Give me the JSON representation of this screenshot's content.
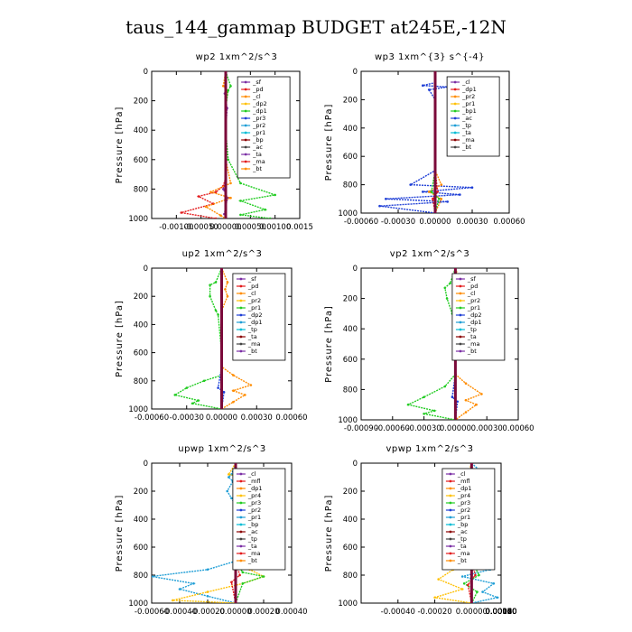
{
  "title": "taus_144_gammap  BUDGET at245E,-12N",
  "chart_data": [
    {
      "type": "line",
      "title": "wp2  1xm^2/s^3",
      "ylabel": "Pressure [hPa]",
      "xlim": [
        -0.0015,
        0.0015
      ],
      "ylim": [
        1000,
        0
      ],
      "xticks": [
        -0.001,
        -0.0005,
        0,
        0.0005,
        0.001,
        0.0015
      ],
      "xtick_labels": [
        "-0.00100",
        "-0.00050",
        "0.00000",
        "0.00050",
        "0.00100",
        "0.0015"
      ],
      "yticks": [
        0,
        200,
        400,
        600,
        800,
        1000
      ],
      "legend": [
        "_sf",
        "_pd",
        "_cl",
        "_dp2",
        "_dp1",
        "_pr3",
        "_pr2",
        "_pr1",
        "_bp",
        "_ac",
        "_ta",
        "_ma",
        "_bt"
      ],
      "series": [
        {
          "name": "_pd",
          "color": "#7b2fa5",
          "x": [
            0,
            0,
            -2e-05,
            3e-05,
            0,
            0,
            0,
            -5e-05,
            4e-05,
            0,
            -3e-05,
            0
          ],
          "y": [
            0,
            100,
            150,
            250,
            400,
            600,
            720,
            800,
            860,
            920,
            970,
            1000
          ]
        },
        {
          "name": "_cl",
          "color": "#e31a1c",
          "x": [
            0,
            0,
            0,
            0,
            0,
            0,
            -5e-05,
            -0.0002,
            -0.00055,
            -0.00025,
            -0.0009,
            -0.0002
          ],
          "y": [
            0,
            100,
            200,
            400,
            600,
            720,
            780,
            820,
            850,
            900,
            960,
            1000
          ]
        },
        {
          "name": "_pr2",
          "color": "#ff8c00",
          "x": [
            0,
            -5e-05,
            4e-05,
            0,
            0,
            0,
            0.0001,
            -0.0003,
            0.0001,
            -0.0004,
            -0.0001,
            0
          ],
          "y": [
            0,
            100,
            130,
            250,
            400,
            600,
            760,
            820,
            860,
            920,
            980,
            1000
          ]
        },
        {
          "name": "_pr1",
          "color": "#22cc22",
          "x": [
            0,
            0.0001,
            5e-05,
            0,
            0,
            5e-05,
            0.0003,
            0.001,
            0.0003,
            0.0008,
            0.0003,
            0.0009
          ],
          "y": [
            0,
            100,
            130,
            250,
            400,
            600,
            760,
            840,
            880,
            940,
            975,
            1000
          ]
        },
        {
          "name": "_bt",
          "color": "#00bcd4",
          "x": [
            0,
            0,
            0,
            0,
            0,
            0,
            0,
            0
          ],
          "y": [
            0,
            200,
            400,
            600,
            800,
            900,
            950,
            1000
          ]
        }
      ]
    },
    {
      "type": "line",
      "title": "wp3  1xm^{3} s^{-4}",
      "ylabel": "Pressure [hPa]",
      "xlim": [
        -0.0006,
        0.0006
      ],
      "ylim": [
        1000,
        0
      ],
      "xticks": [
        -0.0006,
        -0.0003,
        0,
        0.0003,
        0.0006
      ],
      "xtick_labels": [
        "-0.00060",
        "-0.00030",
        "0.00000",
        "0.00030",
        "0.00060"
      ],
      "yticks": [
        0,
        200,
        400,
        600,
        800,
        1000
      ],
      "legend": [
        "_cl",
        "_dp1",
        "_pr2",
        "_pr1",
        "_bp1",
        "_ac",
        "_tp",
        "_ta",
        "_ma",
        "_bt"
      ],
      "series": [
        {
          "name": "_dp1",
          "color": "#1f3fd6",
          "x": [
            0,
            0,
            -0.0001,
            0.0001,
            -5e-05,
            0,
            0,
            -0.0002,
            0.0003,
            -0.0001,
            0.0002,
            -0.0004,
            0.0001,
            -0.00045,
            0
          ],
          "y": [
            0,
            80,
            100,
            110,
            130,
            200,
            700,
            800,
            820,
            850,
            870,
            900,
            920,
            950,
            1000
          ]
        },
        {
          "name": "_pr2",
          "color": "#ff8c00",
          "x": [
            0,
            0,
            0,
            5e-05,
            -5e-05,
            5e-05,
            0
          ],
          "y": [
            0,
            100,
            700,
            800,
            850,
            900,
            1000
          ]
        },
        {
          "name": "_pr1",
          "color": "#22cc22",
          "x": [
            0,
            0,
            0,
            -3e-05,
            3e-05,
            0
          ],
          "y": [
            0,
            100,
            700,
            850,
            900,
            1000
          ]
        },
        {
          "name": "_cl",
          "color": "#e31a1c",
          "x": [
            0,
            0,
            0,
            2e-05,
            -2e-05,
            0
          ],
          "y": [
            0,
            200,
            700,
            850,
            900,
            1000
          ]
        },
        {
          "name": "_bt",
          "color": "#00bcd4",
          "x": [
            0,
            0,
            0
          ],
          "y": [
            0,
            500,
            1000
          ]
        }
      ]
    },
    {
      "type": "line",
      "title": "up2  1xm^2/s^3",
      "ylabel": "Pressure [hPa]",
      "xlim": [
        -0.0006,
        0.0006
      ],
      "ylim": [
        1000,
        0
      ],
      "xticks": [
        -0.0006,
        -0.0003,
        0,
        0.0003,
        0.0006
      ],
      "xtick_labels": [
        "-0.00060",
        "-0.00030",
        "0.00000",
        "0.00030",
        "0.00060"
      ],
      "yticks": [
        0,
        200,
        400,
        600,
        800,
        1000
      ],
      "legend": [
        "_sf",
        "_pd",
        "_cl",
        "_pr2",
        "_pr1",
        "_dp2",
        "_dp1",
        "_tp",
        "_ta",
        "_ma",
        "_bt"
      ],
      "series": [
        {
          "name": "_pr1",
          "color": "#22cc22",
          "x": [
            0,
            -5e-05,
            -0.0001,
            -0.0001,
            -5e-05,
            -3e-05,
            0,
            0,
            -0.00015,
            -0.0003,
            -0.0004,
            -0.0002,
            -0.00025,
            0
          ],
          "y": [
            0,
            100,
            120,
            200,
            300,
            330,
            600,
            760,
            800,
            850,
            900,
            940,
            960,
            1000
          ]
        },
        {
          "name": "_pr2",
          "color": "#ff8c00",
          "x": [
            0,
            5e-05,
            3e-05,
            5e-05,
            0,
            0,
            0.0001,
            0.00025,
            0.0001,
            0.0002,
            0.0001,
            0
          ],
          "y": [
            0,
            100,
            150,
            200,
            300,
            700,
            760,
            830,
            870,
            900,
            950,
            1000
          ]
        },
        {
          "name": "_dp1",
          "color": "#1f3fd6",
          "x": [
            0,
            0,
            0,
            -3e-05,
            2e-05,
            0
          ],
          "y": [
            0,
            500,
            700,
            850,
            880,
            1000
          ]
        },
        {
          "name": "_cl",
          "color": "#e31a1c",
          "x": [
            0,
            0,
            0,
            0
          ],
          "y": [
            0,
            300,
            700,
            1000
          ]
        },
        {
          "name": "_pd",
          "color": "#7b2fa5",
          "x": [
            0,
            0,
            0
          ],
          "y": [
            0,
            500,
            1000
          ]
        }
      ]
    },
    {
      "type": "line",
      "title": "vp2  1xm^2/s^3",
      "ylabel": "Pressure [hPa]",
      "xlim": [
        -0.0009,
        0.0006
      ],
      "ylim": [
        1000,
        0
      ],
      "xticks": [
        -0.0009,
        -0.0006,
        -0.0003,
        0,
        0.0003,
        0.0006
      ],
      "xtick_labels": [
        "-0.00090",
        "-0.00060",
        "-0.00030",
        "0.00000",
        "0.00030",
        "0.00060"
      ],
      "yticks": [
        0,
        200,
        400,
        600,
        800,
        1000
      ],
      "legend": [
        "_sf",
        "_pd",
        "_cl",
        "_pr2",
        "_pr1",
        "_dp2",
        "_dp1",
        "_tp",
        "_ta",
        "_ma",
        "_bt"
      ],
      "series": [
        {
          "name": "_pr1",
          "color": "#22cc22",
          "x": [
            0,
            -5e-05,
            -0.0001,
            -8e-05,
            -3e-05,
            0,
            0,
            -0.0001,
            -0.0003,
            -0.00045,
            -0.0002,
            -0.0003,
            0
          ],
          "y": [
            0,
            100,
            130,
            200,
            300,
            330,
            700,
            780,
            850,
            900,
            940,
            960,
            1000
          ]
        },
        {
          "name": "_pr2",
          "color": "#ff8c00",
          "x": [
            0,
            5e-05,
            0.0001,
            5e-05,
            0,
            0,
            0.0001,
            0.00025,
            0.0001,
            0.0002,
            0.0001,
            0
          ],
          "y": [
            0,
            100,
            150,
            200,
            300,
            700,
            760,
            830,
            870,
            900,
            950,
            1000
          ]
        },
        {
          "name": "_dp1",
          "color": "#1f3fd6",
          "x": [
            0,
            0,
            0,
            -3e-05,
            2e-05,
            0
          ],
          "y": [
            0,
            500,
            700,
            850,
            880,
            1000
          ]
        },
        {
          "name": "_cl",
          "color": "#e31a1c",
          "x": [
            0,
            0,
            0,
            0
          ],
          "y": [
            0,
            300,
            700,
            1000
          ]
        },
        {
          "name": "_pd",
          "color": "#7b2fa5",
          "x": [
            0,
            0,
            0
          ],
          "y": [
            0,
            500,
            1000
          ]
        }
      ]
    },
    {
      "type": "line",
      "title": "upwp  1xm^2/s^3",
      "ylabel": "Pressure [hPa]",
      "xlim": [
        -0.0006,
        0.0004
      ],
      "ylim": [
        1000,
        0
      ],
      "xticks": [
        -0.0006,
        -0.0004,
        -0.0002,
        0,
        0.0002,
        0.0004
      ],
      "xtick_labels": [
        "-0.00060",
        "-0.00040",
        "-0.00020",
        "0.00000",
        "0.00020",
        "0.00040"
      ],
      "yticks": [
        0,
        200,
        400,
        600,
        800,
        1000
      ],
      "legend": [
        "_cl",
        "_mfl",
        "_dp1",
        "_pr4",
        "_pr3",
        "_pr2",
        "_pr1",
        "_bp",
        "_ac",
        "_tp",
        "_ta",
        "_ma",
        "_bt"
      ],
      "series": [
        {
          "name": "_cl",
          "color": "#1f9ed6",
          "x": [
            0,
            -3e-05,
            -5e-05,
            -2e-05,
            -6e-05,
            -3e-05,
            0,
            0,
            -0.0002,
            -0.0006,
            -0.0003,
            -0.0004,
            -0.0002,
            0
          ],
          "y": [
            0,
            80,
            100,
            130,
            200,
            250,
            300,
            700,
            760,
            810,
            860,
            900,
            950,
            1000
          ]
        },
        {
          "name": "_pr2",
          "color": "#ffc107",
          "x": [
            0,
            -5e-05,
            3e-05,
            0,
            0,
            0.0001,
            0.0002,
            5e-05,
            -0.0002,
            -0.00045,
            0
          ],
          "y": [
            0,
            80,
            100,
            200,
            700,
            760,
            810,
            860,
            920,
            980,
            1000
          ]
        },
        {
          "name": "_pr1",
          "color": "#22cc22",
          "x": [
            0,
            0,
            0,
            5e-05,
            0.0002,
            5e-05,
            0
          ],
          "y": [
            0,
            200,
            700,
            780,
            810,
            860,
            1000
          ]
        },
        {
          "name": "_mfl",
          "color": "#e31a1c",
          "x": [
            0,
            0,
            0,
            3e-05,
            -3e-05,
            0
          ],
          "y": [
            0,
            200,
            700,
            800,
            850,
            1000
          ]
        },
        {
          "name": "_bt",
          "color": "#7b2fa5",
          "x": [
            0,
            0,
            0
          ],
          "y": [
            0,
            500,
            1000
          ]
        }
      ]
    },
    {
      "type": "line",
      "title": "vpwp  1xm^2/s^3",
      "ylabel": "Pressure [hPa]",
      "xlim": [
        -0.0006,
        0.00016
      ],
      "ylim": [
        1000,
        0
      ],
      "xticks": [
        -0.0004,
        -0.0002,
        0,
        0.0002,
        0.0004,
        0.0006,
        0.0008,
        0.001,
        0.0012,
        0.0014,
        0.0016
      ],
      "xtick_labels": [
        "-0.00040",
        "-0.00020",
        "0.00000",
        "0.00020",
        "0.00040",
        "0.00060",
        "0.00080",
        "0.00100",
        "0.00120",
        "0.00140",
        "0.00160"
      ],
      "yticks": [
        0,
        200,
        400,
        600,
        800,
        1000
      ],
      "legend": [
        "_cl",
        "_mfl",
        "_dp1",
        "_pr4",
        "_pr3",
        "_pr2",
        "_pr1",
        "_bp",
        "_ac",
        "_tp",
        "_ta",
        "_ma",
        "_bt"
      ],
      "series": [
        {
          "name": "_cl",
          "color": "#1f9ed6",
          "x": [
            0,
            5e-05,
            -8e-05,
            6e-05,
            -5e-05,
            4e-05,
            0,
            0,
            0.0001,
            -5e-05,
            0.00012,
            6e-05,
            0.00014,
            0
          ],
          "y": [
            0,
            60,
            100,
            150,
            200,
            260,
            300,
            700,
            760,
            810,
            860,
            920,
            960,
            1000
          ]
        },
        {
          "name": "_pr2",
          "color": "#ffc107",
          "x": [
            0,
            -2e-05,
            6e-05,
            3e-05,
            5e-05,
            0,
            0,
            -0.0001,
            -0.00018,
            -5e-05,
            -0.0002,
            0
          ],
          "y": [
            0,
            80,
            130,
            180,
            240,
            300,
            700,
            760,
            830,
            900,
            960,
            1000
          ]
        },
        {
          "name": "_pr1",
          "color": "#22cc22",
          "x": [
            0,
            0,
            0,
            4e-05,
            -4e-05,
            3e-05,
            0
          ],
          "y": [
            0,
            300,
            700,
            800,
            860,
            920,
            1000
          ]
        },
        {
          "name": "_mfl",
          "color": "#e31a1c",
          "x": [
            0,
            0,
            0,
            2e-05,
            -2e-05,
            0
          ],
          "y": [
            0,
            300,
            700,
            800,
            870,
            1000
          ]
        },
        {
          "name": "_bt",
          "color": "#7b2fa5",
          "x": [
            0,
            0,
            0
          ],
          "y": [
            0,
            500,
            1000
          ]
        }
      ]
    }
  ]
}
